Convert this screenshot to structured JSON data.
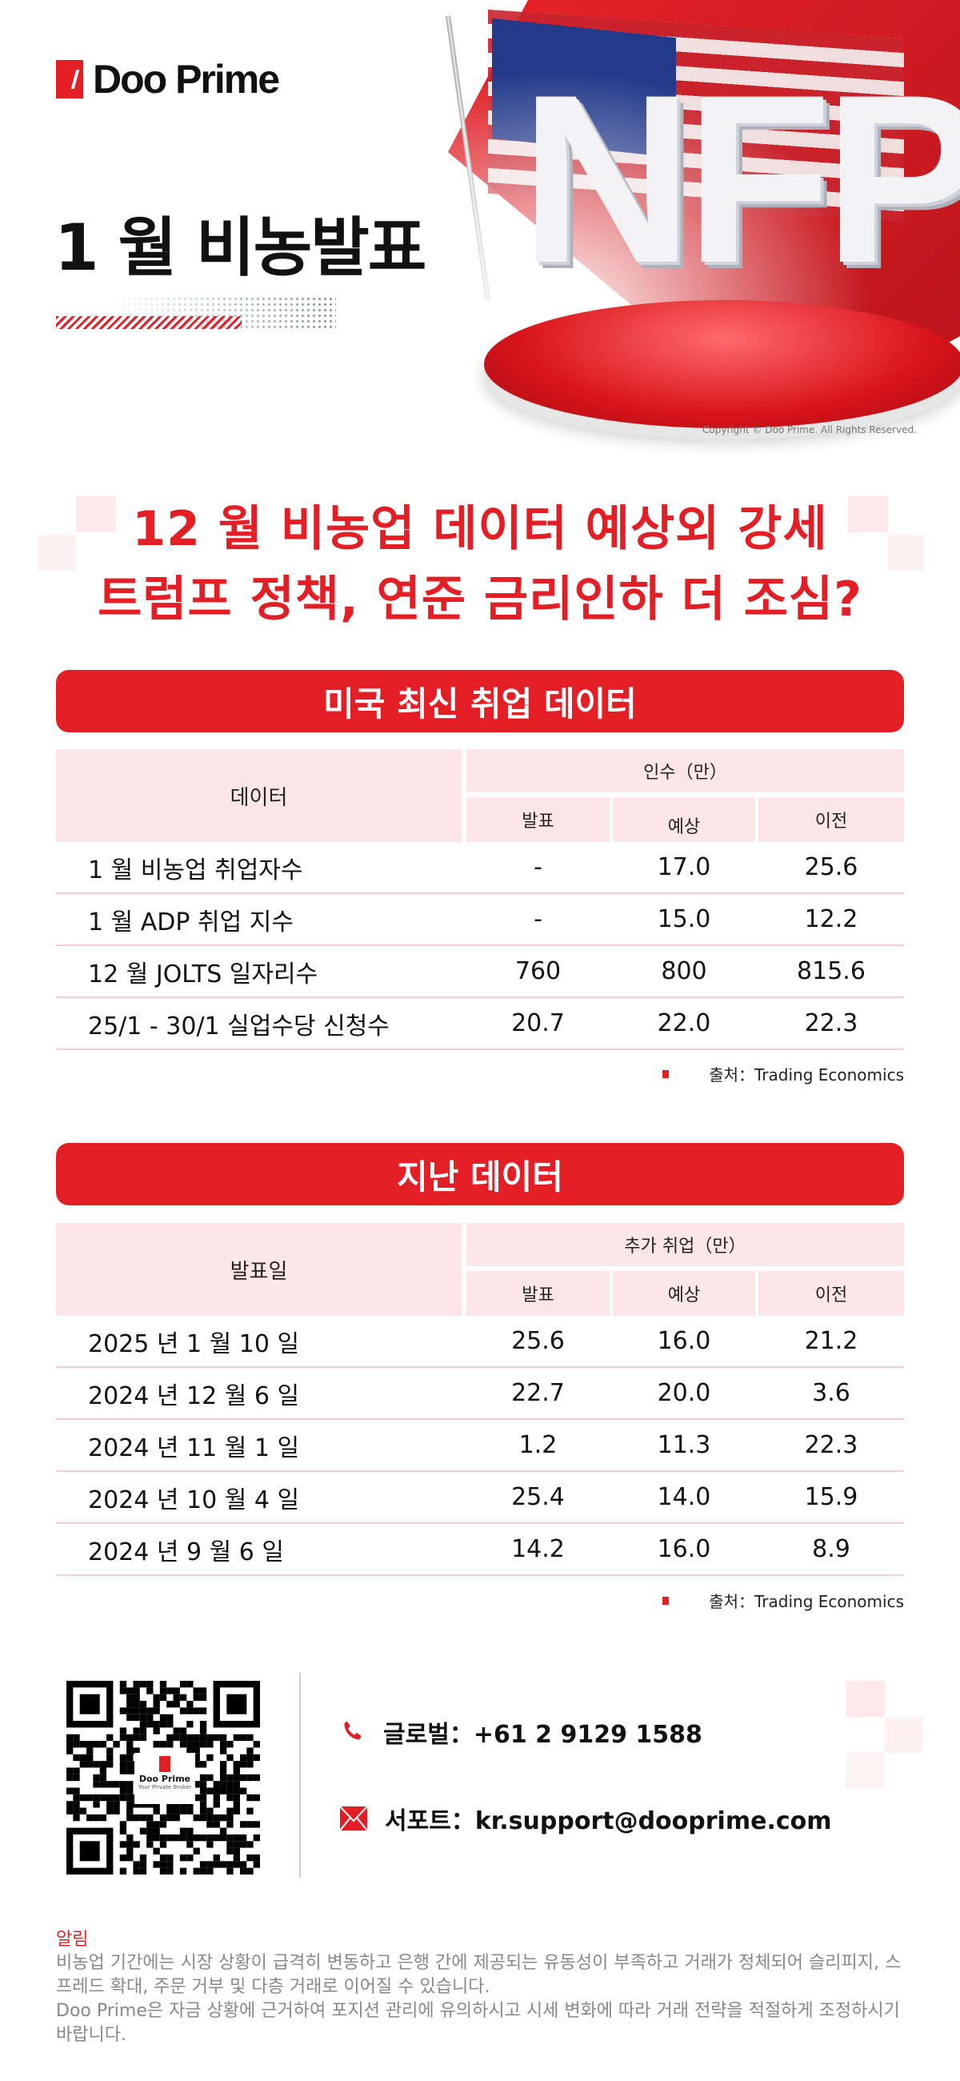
{
  "brand": {
    "name": "Doo Prime",
    "accent": "#e31e24"
  },
  "hero": {
    "title": "1 월 비농발표",
    "graphic_text": "NFP",
    "copyright": "Copyright © Doo Prime. All Rights Reserved."
  },
  "headline": {
    "line1": "12 월 비농업 데이터 예상외 강세",
    "line2": "트럼프 정책, 연준 금리인하 더 조심?"
  },
  "section1": {
    "title": "미국 최신 취업 데이터",
    "col_header": "데이터",
    "group_header": "인수（만）",
    "sub_headers": [
      "발표",
      "예상",
      "이전"
    ],
    "rows": [
      {
        "name": "1 월 비농업 취업자수",
        "actual": "-",
        "forecast": "17.0",
        "previous": "25.6"
      },
      {
        "name": "1 월 ADP 취업 지수",
        "actual": "-",
        "forecast": "15.0",
        "previous": "12.2"
      },
      {
        "name": "12 월 JOLTS 일자리수",
        "actual": "760",
        "forecast": "800",
        "previous": "815.6"
      },
      {
        "name": "25/1 - 30/1 실업수당 신청수",
        "actual": "20.7",
        "forecast": "22.0",
        "previous": "22.3"
      }
    ],
    "source": "출처：Trading Economics"
  },
  "section2": {
    "title": "지난 데이터",
    "col_header": "발표일",
    "group_header": "추가 취업（만）",
    "sub_headers": [
      "발표",
      "예상",
      "이전"
    ],
    "rows": [
      {
        "name": "2025 년 1 월 10 일",
        "actual": "25.6",
        "forecast": "16.0",
        "previous": "21.2"
      },
      {
        "name": "2024 년 12 월 6 일",
        "actual": "22.7",
        "forecast": "20.0",
        "previous": "3.6"
      },
      {
        "name": "2024 년 11 월 1 일",
        "actual": "1.2",
        "forecast": "11.3",
        "previous": "22.3"
      },
      {
        "name": "2024 년 10 월 4 일",
        "actual": "25.4",
        "forecast": "14.0",
        "previous": "15.9"
      },
      {
        "name": "2024 년 9 월 6 일",
        "actual": "14.2",
        "forecast": "16.0",
        "previous": "8.9"
      }
    ],
    "source": "출처：Trading Economics"
  },
  "footer": {
    "qr_brand": "Doo Prime",
    "qr_tagline": "Your Private Broker",
    "phone_label": "글로벌：",
    "phone": "+61 2 9129 1588",
    "phone_icon": "phone-icon",
    "email_label": "서포트：",
    "email": "kr.support@dooprime.com",
    "email_icon": "mail-icon",
    "notice_title": "알림",
    "notice_p1": "비농업 기간에는 시장 상황이 급격히 변동하고 은행 간에 제공되는 유동성이 부족하고 거래가 정체되어 슬리피지, 스프레드 확대, 주문 거부 및 다층 거래로 이어질 수 있습니다.",
    "notice_p2": "Doo Prime은 자금 상황에 근거하여 포지션 관리에 유의하시고 시세 변화에 따라 거래 전략을 적절하게 조정하시기 바랍니다."
  }
}
